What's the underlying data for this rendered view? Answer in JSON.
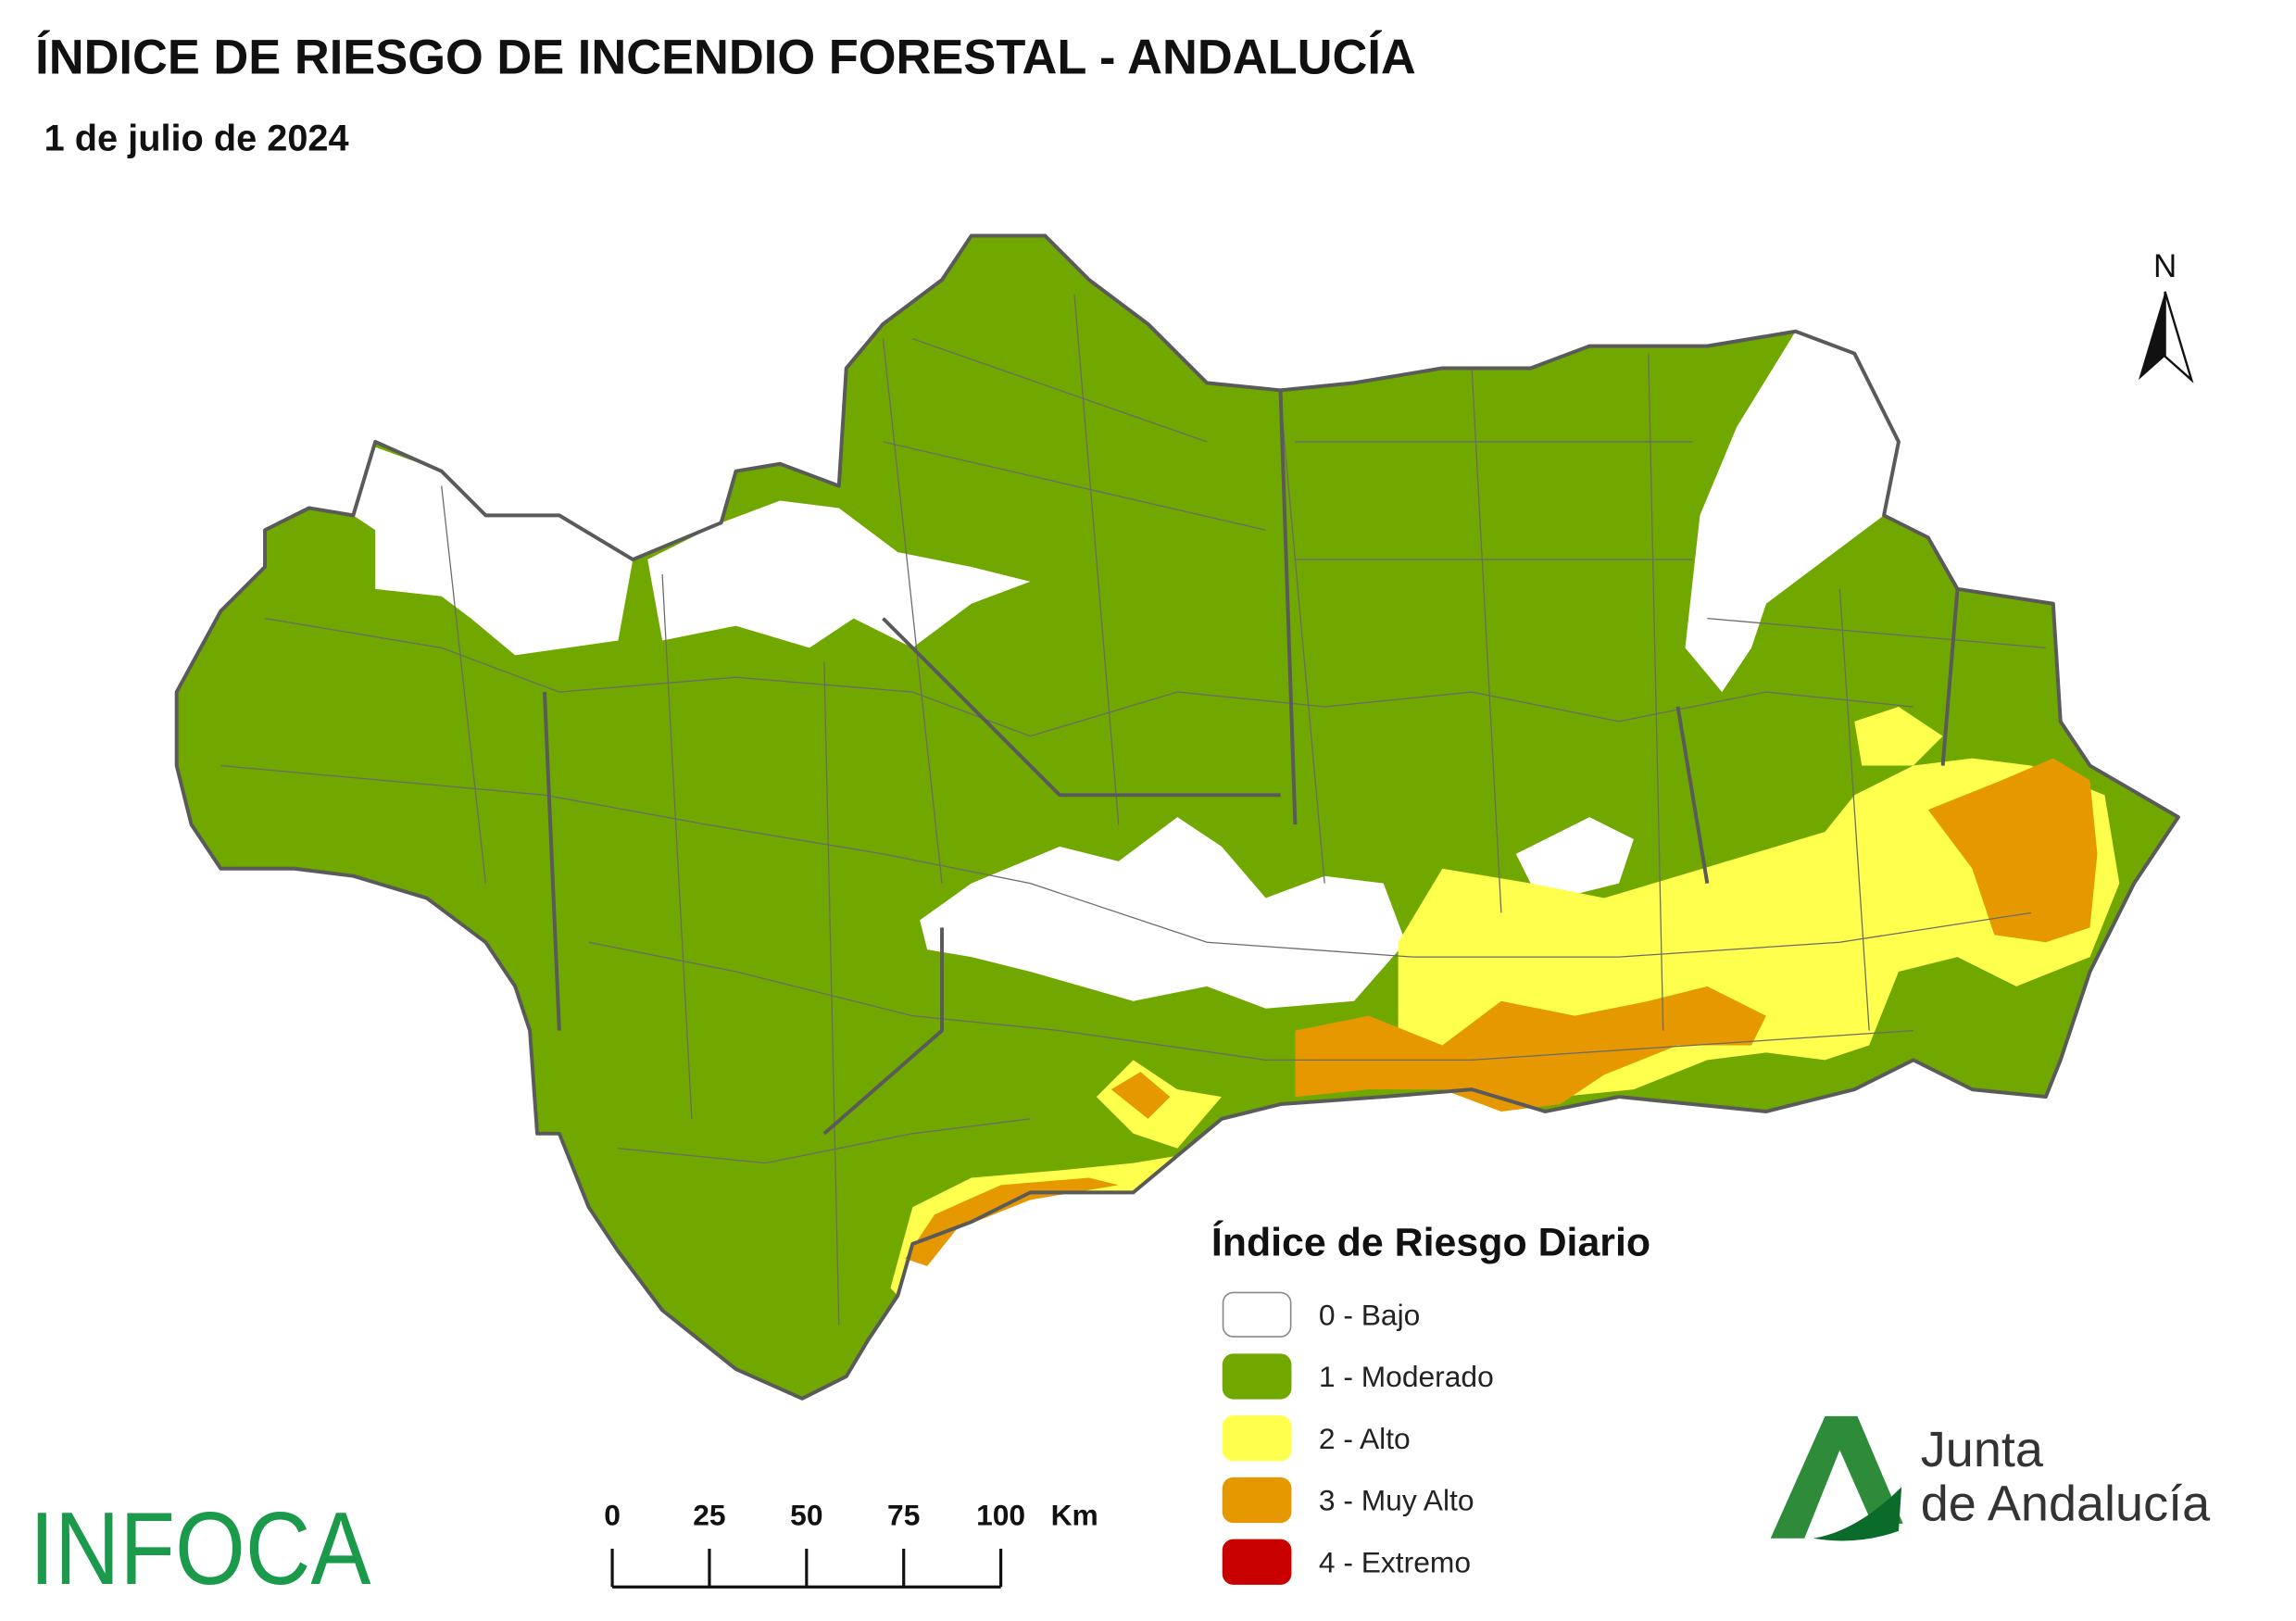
{
  "header": {
    "title": "ÍNDICE DE RIESGO DE INCENDIO FORESTAL - ANDALUCÍA",
    "subtitle": "1 de julio de 2024"
  },
  "north_label": "N",
  "legend": {
    "title": "Índice de Riesgo Diario",
    "items": [
      {
        "label": "0 - Bajo",
        "color": "#ffffff"
      },
      {
        "label": "1 - Moderado",
        "color": "#70a800"
      },
      {
        "label": "2 - Alto",
        "color": "#ffff4d"
      },
      {
        "label": "3 - Muy Alto",
        "color": "#e69800"
      },
      {
        "label": "4 - Extremo",
        "color": "#c80000"
      }
    ]
  },
  "scale_bar": {
    "ticks": [
      0,
      25,
      50,
      75,
      100
    ],
    "unit": "Km"
  },
  "logos": {
    "infoca": "INFOCA",
    "junta": [
      "Junta",
      "de Andalucía"
    ]
  }
}
